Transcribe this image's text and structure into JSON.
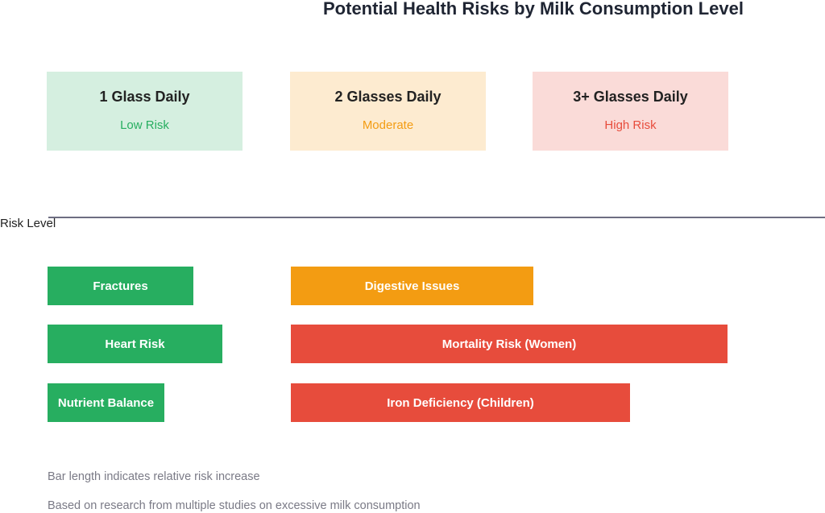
{
  "title": "Potential Health Risks by Milk Consumption Level",
  "levels": [
    {
      "label": "1 Glass Daily",
      "risk": "Low Risk",
      "bg": "#d5efe0",
      "color": "#27ae60"
    },
    {
      "label": "2 Glasses Daily",
      "risk": "Moderate",
      "bg": "#fdebd0",
      "color": "#f39c12"
    },
    {
      "label": "3+ Glasses Daily",
      "risk": "High Risk",
      "bg": "#fadbd8",
      "color": "#e74c3c"
    }
  ],
  "axis_label": "Risk Level",
  "bars": [
    {
      "label": "Fractures",
      "color": "#27ae60"
    },
    {
      "label": "Heart Risk",
      "color": "#27ae60"
    },
    {
      "label": "Nutrient Balance",
      "color": "#27ae60"
    },
    {
      "label": "Digestive Issues",
      "color": "#f39c12"
    },
    {
      "label": "Mortality Risk (Women)",
      "color": "#e74c3c"
    },
    {
      "label": "Iron Deficiency (Children)",
      "color": "#e74c3c"
    }
  ],
  "notes": [
    "Bar length indicates relative risk increase",
    "Based on research from multiple studies on excessive milk consumption"
  ]
}
